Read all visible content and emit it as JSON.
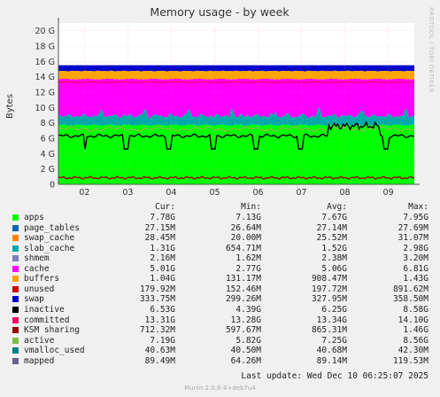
{
  "chart_data": {
    "type": "area",
    "title": "Memory usage - by week",
    "ylabel": "Bytes",
    "ylim": [
      0,
      21
    ],
    "yticks": [
      "0",
      "2 G",
      "4 G",
      "6 G",
      "8 G",
      "10 G",
      "12 G",
      "14 G",
      "16 G",
      "18 G",
      "20 G"
    ],
    "xticks": [
      "02",
      "03",
      "04",
      "05",
      "06",
      "07",
      "08",
      "09"
    ],
    "grid": true,
    "series": [
      {
        "name": "apps",
        "color": "#00ff00",
        "cur": "7.78G",
        "min": "7.13G",
        "avg": "7.67G",
        "max": "7.95G"
      },
      {
        "name": "page_tables",
        "color": "#0066b3",
        "cur": "27.15M",
        "min": "26.64M",
        "avg": "27.14M",
        "max": "27.69M"
      },
      {
        "name": "swap_cache",
        "color": "#ff8000",
        "cur": "28.45M",
        "min": "20.00M",
        "avg": "25.52M",
        "max": "31.07M"
      },
      {
        "name": "slab_cache",
        "color": "#00aaaa",
        "cur": "1.31G",
        "min": "654.71M",
        "avg": "1.52G",
        "max": "2.98G"
      },
      {
        "name": "shmem",
        "color": "#8080c0",
        "cur": "2.16M",
        "min": "1.62M",
        "avg": "2.38M",
        "max": "3.20M"
      },
      {
        "name": "cache",
        "color": "#ff00ff",
        "cur": "5.01G",
        "min": "2.77G",
        "avg": "5.06G",
        "max": "6.81G"
      },
      {
        "name": "buffers",
        "color": "#ffa500",
        "cur": "1.04G",
        "min": "131.17M",
        "avg": "908.47M",
        "max": "1.43G"
      },
      {
        "name": "unused",
        "color": "#cc0000",
        "cur": "179.92M",
        "min": "152.46M",
        "avg": "197.72M",
        "max": "891.62M"
      },
      {
        "name": "swap",
        "color": "#0000cc",
        "cur": "333.75M",
        "min": "299.26M",
        "avg": "327.95M",
        "max": "358.50M"
      },
      {
        "name": "inactive",
        "color": "#000000",
        "cur": "6.53G",
        "min": "4.39G",
        "avg": "6.25G",
        "max": "8.58G"
      },
      {
        "name": "committed",
        "color": "#ff0066",
        "cur": "13.31G",
        "min": "13.28G",
        "avg": "13.34G",
        "max": "14.10G"
      },
      {
        "name": "KSM sharing",
        "color": "#990000",
        "cur": "712.32M",
        "min": "597.67M",
        "avg": "865.31M",
        "max": "1.46G"
      },
      {
        "name": "active",
        "color": "#7ebc43",
        "cur": "7.19G",
        "min": "5.82G",
        "avg": "7.25G",
        "max": "8.56G"
      },
      {
        "name": "vmalloc_used",
        "color": "#008080",
        "cur": "40.63M",
        "min": "40.50M",
        "avg": "40.68M",
        "max": "42.30M"
      },
      {
        "name": "mapped",
        "color": "#6b5f8f",
        "cur": "89.49M",
        "min": "64.26M",
        "avg": "89.14M",
        "max": "119.53M"
      }
    ]
  },
  "legend_headers": {
    "cur": "Cur:",
    "min": "Min:",
    "avg": "Avg:",
    "max": "Max:"
  },
  "last_update": "Last update: Wed Dec 10 06:25:07 2025",
  "footer": "Munin 2.0.6-4+deb7u4",
  "side_text": "RRDTOOL / TOBI OETIKER"
}
